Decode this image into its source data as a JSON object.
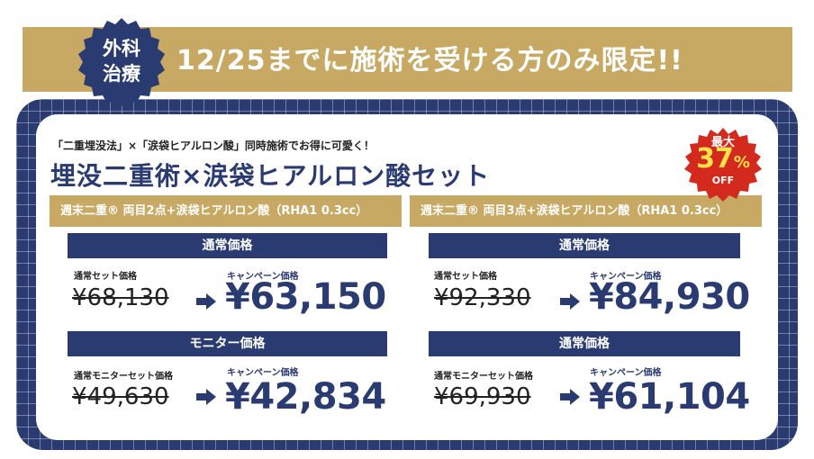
{
  "banner": {
    "seal_line1": "外科",
    "seal_line2": "治療",
    "text": "12/25までに施術を受ける方のみ限定!!"
  },
  "promo": {
    "subtitle": "「二重埋没法」×「涙袋ヒアルロン酸」同時施術でお得に可愛く！",
    "title": "埋没二重術×涙袋ヒアルロン酸セット",
    "badge_top": "最大",
    "badge_percent": "37",
    "badge_percent_sign": "%",
    "badge_bottom": "OFF"
  },
  "plans": [
    {
      "header": "週末二重® 両目2点+涙袋ヒアルロン酸（RHA1 0.3cc）",
      "sections": [
        {
          "bar": "通常価格",
          "regular_label": "通常セット価格",
          "regular_price": "¥68,130",
          "campaign_label": "キャンペーン価格",
          "campaign_price": "¥63,150"
        },
        {
          "bar": "モニター価格",
          "regular_label": "通常モニターセット価格",
          "regular_price": "¥49,630",
          "campaign_label": "キャンペーン価格",
          "campaign_price": "¥42,834"
        }
      ]
    },
    {
      "header": "週末二重® 両目3点+涙袋ヒアルロン酸（RHA1 0.3cc）",
      "sections": [
        {
          "bar": "通常価格",
          "regular_label": "通常セット価格",
          "regular_price": "¥92,330",
          "campaign_label": "キャンペーン価格",
          "campaign_price": "¥84,930"
        },
        {
          "bar": "通常価格",
          "regular_label": "通常モニターセット価格",
          "regular_price": "¥69,930",
          "campaign_label": "キャンペーン価格",
          "campaign_price": "¥61,104"
        }
      ]
    }
  ],
  "colors": {
    "navy": "#2a3b72",
    "gold": "#c8a964",
    "badge_red": "#d42a1e",
    "badge_yellow": "#ffe14a"
  },
  "icons": [
    "seal-badge",
    "arrow-right-icon",
    "starburst-badge"
  ]
}
